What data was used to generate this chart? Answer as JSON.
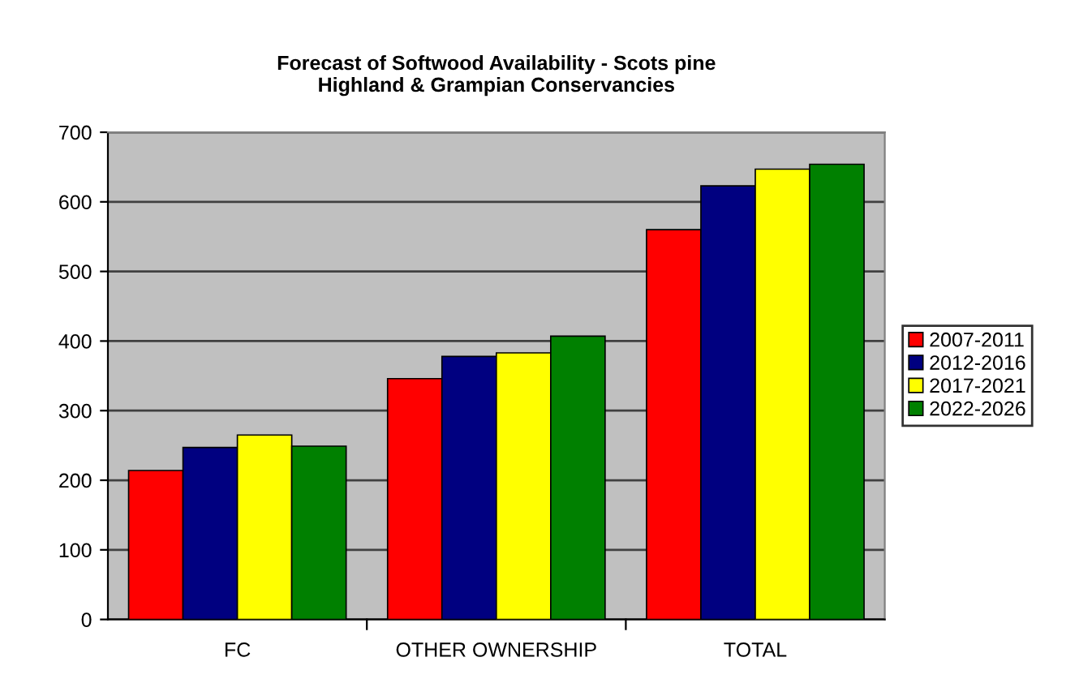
{
  "chart_data": {
    "type": "bar",
    "title": "Forecast of Softwood Availability - Scots pine\nHighland & Grampian Conservancies",
    "categories": [
      "FC",
      "OTHER OWNERSHIP",
      "TOTAL"
    ],
    "series": [
      {
        "name": "2007-2011",
        "color": "#ff0000",
        "values": [
          214,
          346,
          560
        ]
      },
      {
        "name": "2012-2016",
        "color": "#000080",
        "values": [
          247,
          378,
          623
        ]
      },
      {
        "name": "2017-2021",
        "color": "#ffff00",
        "values": [
          265,
          383,
          647
        ]
      },
      {
        "name": "2022-2026",
        "color": "#008000",
        "values": [
          249,
          407,
          654
        ]
      }
    ],
    "ylim": [
      0,
      700
    ],
    "yticks": [
      0,
      100,
      200,
      300,
      400,
      500,
      600,
      700
    ],
    "grid": "y",
    "legend": "right"
  }
}
